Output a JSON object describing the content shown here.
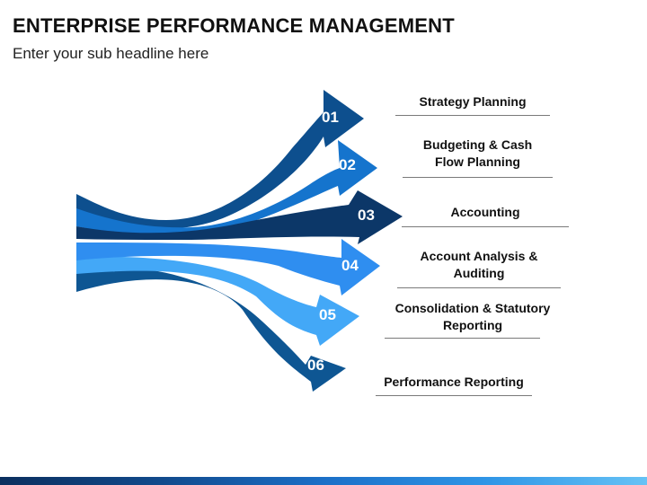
{
  "title": "ENTERPRISE PERFORMANCE MANAGEMENT",
  "subtitle": "Enter your sub headline here",
  "colors": {
    "c01": "#0d4f8e",
    "c02": "#1574cd",
    "c03": "#0c3768",
    "c04": "#2f8ef0",
    "c05": "#43a8f7",
    "c06": "#0e5693"
  },
  "items": [
    {
      "number": "01",
      "lines": [
        "Strategy Planning"
      ]
    },
    {
      "number": "02",
      "lines": [
        "Budgeting & Cash",
        "Flow Planning"
      ]
    },
    {
      "number": "03",
      "lines": [
        "Accounting"
      ]
    },
    {
      "number": "04",
      "lines": [
        "Account Analysis &",
        "Auditing"
      ]
    },
    {
      "number": "05",
      "lines": [
        "Consolidation & Statutory",
        "Reporting"
      ]
    },
    {
      "number": "06",
      "lines": [
        "Performance Reporting"
      ]
    }
  ]
}
